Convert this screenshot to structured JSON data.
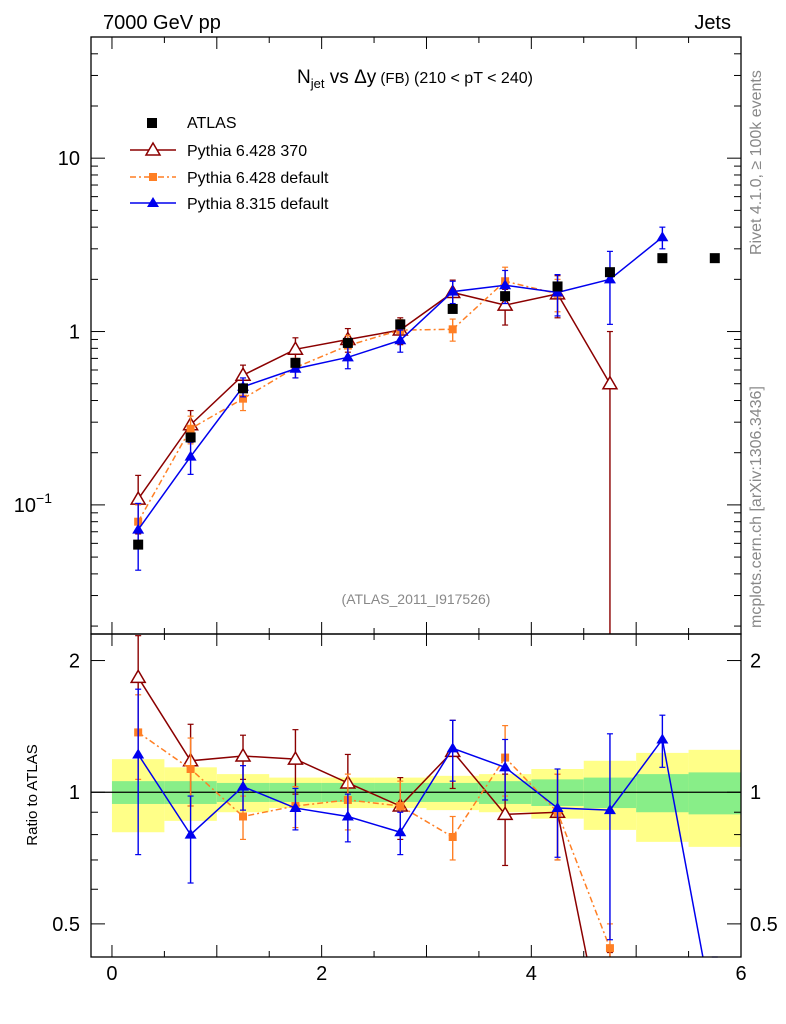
{
  "header": {
    "left": "7000 GeV pp",
    "right": "Jets"
  },
  "side": {
    "rivet": "Rivet 4.1.0, ≥ 100k events",
    "mcplots": "mcplots.cern.ch [arXiv:1306.3436]"
  },
  "chart_data": {
    "type": "scatter",
    "title": {
      "main": "N",
      "sub": "jet",
      "rest": " vs Δy",
      "small": " (FB)",
      "tail": " (210 < pT < 240)"
    },
    "analysis_label": "(ATLAS_2011_I917526)",
    "xlim": [
      -0.2,
      6.0
    ],
    "ylim_main": [
      0.018,
      50
    ],
    "ylim_ratio": [
      0.42,
      2.3
    ],
    "ylabel_ratio": "Ratio to ATLAS",
    "xticks": [
      0,
      2,
      4,
      6
    ],
    "main_ticks": [
      {
        "v": 0.1,
        "base": "10",
        "exp": "−1"
      },
      {
        "v": 1,
        "label": "1"
      },
      {
        "v": 10,
        "label": "10"
      }
    ],
    "ratio_ticks": [
      {
        "v": 0.5,
        "label": "0.5"
      },
      {
        "v": 1,
        "label": "1"
      },
      {
        "v": 2,
        "label": "2"
      }
    ],
    "x": [
      0.25,
      0.75,
      1.25,
      1.75,
      2.25,
      2.75,
      3.25,
      3.75,
      4.25,
      4.75,
      5.25,
      5.75
    ],
    "data": {
      "name": "ATLAS",
      "values": [
        0.059,
        0.245,
        0.47,
        0.66,
        0.86,
        1.1,
        1.35,
        1.6,
        1.82,
        2.2,
        2.65,
        2.65
      ],
      "band_inner": [
        0.06,
        0.06,
        0.05,
        0.05,
        0.05,
        0.05,
        0.05,
        0.06,
        0.07,
        0.08,
        0.1,
        0.11
      ],
      "band_outer": [
        0.19,
        0.14,
        0.1,
        0.08,
        0.08,
        0.08,
        0.09,
        0.1,
        0.13,
        0.18,
        0.23,
        0.25
      ]
    },
    "series": [
      {
        "name": "Pythia 6.428 370",
        "color": "#8b0000",
        "marker": "triangle-open",
        "dash": "",
        "values": [
          0.108,
          0.29,
          0.56,
          0.79,
          0.9,
          1.02,
          1.68,
          1.42,
          1.65,
          0.5
        ],
        "err": [
          0.04,
          0.06,
          0.08,
          0.13,
          0.14,
          0.18,
          0.3,
          0.33,
          0.45,
          0.5
        ],
        "ratio": [
          1.83,
          1.18,
          1.21,
          1.19,
          1.05,
          0.93,
          1.24,
          0.89,
          0.9,
          0.23
        ],
        "ratio_err": [
          0.45,
          0.25,
          0.14,
          0.2,
          0.17,
          0.15,
          0.22,
          0.21,
          0.2,
          0.2
        ]
      },
      {
        "name": "Pythia 6.428 default",
        "color": "#ff7f24",
        "marker": "square",
        "dash": "6,3,2,3",
        "values": [
          0.08,
          0.275,
          0.41,
          0.62,
          0.83,
          1.02,
          1.03,
          1.95,
          1.65,
          null
        ],
        "err": [
          0.02,
          0.05,
          0.06,
          0.08,
          0.12,
          0.15,
          0.15,
          0.4,
          0.35,
          null
        ],
        "ratio": [
          1.37,
          1.13,
          0.88,
          0.93,
          0.96,
          0.93,
          0.79,
          1.2,
          0.9,
          0.44
        ],
        "ratio_err": [
          0.3,
          0.2,
          0.1,
          0.1,
          0.14,
          0.13,
          0.09,
          0.22,
          0.2,
          0.06
        ]
      },
      {
        "name": "Pythia 8.315 default",
        "color": "#0000ee",
        "marker": "triangle",
        "dash": "",
        "values": [
          0.072,
          0.19,
          0.48,
          0.61,
          0.71,
          0.89,
          1.7,
          1.85,
          1.68,
          2.0,
          3.5
        ],
        "err": [
          0.03,
          0.04,
          0.06,
          0.07,
          0.1,
          0.13,
          0.25,
          0.4,
          0.45,
          0.9,
          0.5
        ],
        "ratio": [
          1.22,
          0.8,
          1.03,
          0.92,
          0.88,
          0.81,
          1.26,
          1.14,
          0.92,
          0.91,
          1.32,
          0.3
        ],
        "ratio_err": [
          0.5,
          0.18,
          0.12,
          0.1,
          0.11,
          0.09,
          0.2,
          0.18,
          0.21,
          0.45,
          0.18,
          0.1
        ]
      }
    ]
  }
}
